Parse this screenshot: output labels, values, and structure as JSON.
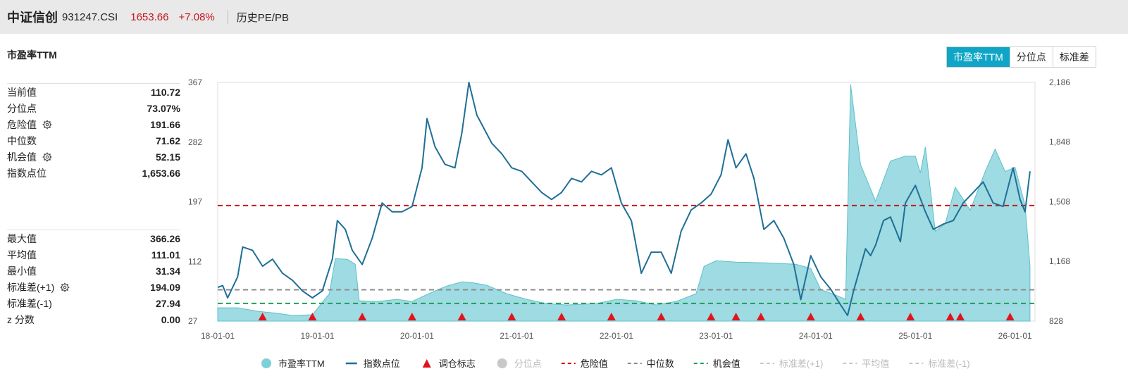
{
  "header": {
    "name": "中证信创",
    "code": "931247.CSI",
    "price": "1653.66",
    "change": "+7.08%",
    "tab": "历史PE/PB"
  },
  "panel_title": "市盈率TTM",
  "toggle": [
    "市盈率TTM",
    "分位点",
    "标准差"
  ],
  "stats_top": [
    {
      "label": "当前值",
      "value": "110.72",
      "gear": false
    },
    {
      "label": "分位点",
      "value": "73.07%",
      "gear": false
    },
    {
      "label": "危险值",
      "value": "191.66",
      "gear": true
    },
    {
      "label": "中位数",
      "value": "71.62",
      "gear": false
    },
    {
      "label": "机会值",
      "value": "52.15",
      "gear": true
    },
    {
      "label": "指数点位",
      "value": "1,653.66",
      "gear": false
    }
  ],
  "stats_bottom": [
    {
      "label": "最大值",
      "value": "366.26",
      "gear": false
    },
    {
      "label": "平均值",
      "value": "111.01",
      "gear": false
    },
    {
      "label": "最小值",
      "value": "31.34",
      "gear": false
    },
    {
      "label": "标准差(+1)",
      "value": "194.09",
      "gear": true
    },
    {
      "label": "标准差(-1)",
      "value": "27.94",
      "gear": false
    },
    {
      "label": "z 分数",
      "value": "0.00",
      "gear": false
    }
  ],
  "chart_data": {
    "type": "area",
    "x_ticks": [
      "18-01-01",
      "19-01-01",
      "20-01-01",
      "21-01-01",
      "22-01-01",
      "23-01-01",
      "24-01-01",
      "25-01-01",
      "26-01-01"
    ],
    "x_range": [
      2018.0,
      2026.2
    ],
    "y_left": {
      "range": [
        27,
        367
      ],
      "ticks": [
        367,
        282,
        197,
        112,
        27
      ],
      "tick_labels": [
        "367",
        "282",
        "197",
        "112",
        "27"
      ]
    },
    "y_right": {
      "range": [
        828,
        2186
      ],
      "ticks": [
        2186,
        1848,
        1508,
        1168,
        828
      ],
      "tick_labels": [
        "2,186",
        "1,848",
        "1,508",
        "1,168",
        "828"
      ]
    },
    "series": [
      {
        "name": "市盈率TTM",
        "axis": "left",
        "color": "#7ecfd8",
        "points": [
          [
            2018.0,
            46
          ],
          [
            2018.2,
            46
          ],
          [
            2018.4,
            41
          ],
          [
            2018.6,
            38
          ],
          [
            2018.75,
            35
          ],
          [
            2018.95,
            36
          ],
          [
            2019.12,
            66
          ],
          [
            2019.18,
            116
          ],
          [
            2019.3,
            115
          ],
          [
            2019.38,
            108
          ],
          [
            2019.42,
            56
          ],
          [
            2019.6,
            55
          ],
          [
            2019.8,
            58
          ],
          [
            2019.95,
            55
          ],
          [
            2020.15,
            68
          ],
          [
            2020.3,
            77
          ],
          [
            2020.45,
            83
          ],
          [
            2020.55,
            82
          ],
          [
            2020.7,
            78
          ],
          [
            2020.9,
            66
          ],
          [
            2021.1,
            58
          ],
          [
            2021.3,
            52
          ],
          [
            2021.5,
            50
          ],
          [
            2021.8,
            52
          ],
          [
            2022.0,
            58
          ],
          [
            2022.2,
            56
          ],
          [
            2022.4,
            50
          ],
          [
            2022.6,
            55
          ],
          [
            2022.8,
            66
          ],
          [
            2022.88,
            105
          ],
          [
            2023.0,
            113
          ],
          [
            2023.2,
            111
          ],
          [
            2023.5,
            110
          ],
          [
            2023.8,
            108
          ],
          [
            2023.95,
            102
          ],
          [
            2024.05,
            72
          ],
          [
            2024.2,
            64
          ],
          [
            2024.3,
            58
          ],
          [
            2024.35,
            364
          ],
          [
            2024.45,
            250
          ],
          [
            2024.6,
            198
          ],
          [
            2024.75,
            255
          ],
          [
            2024.9,
            262
          ],
          [
            2025.0,
            262
          ],
          [
            2025.05,
            238
          ],
          [
            2025.1,
            275
          ],
          [
            2025.2,
            155
          ],
          [
            2025.3,
            166
          ],
          [
            2025.4,
            218
          ],
          [
            2025.55,
            185
          ],
          [
            2025.7,
            240
          ],
          [
            2025.8,
            272
          ],
          [
            2025.9,
            240
          ],
          [
            2026.0,
            246
          ],
          [
            2026.1,
            192
          ],
          [
            2026.15,
            105
          ]
        ]
      },
      {
        "name": "指数点位",
        "axis": "right",
        "color": "#1f6f96",
        "points": [
          [
            2018.0,
            1020
          ],
          [
            2018.05,
            1030
          ],
          [
            2018.1,
            960
          ],
          [
            2018.2,
            1080
          ],
          [
            2018.25,
            1250
          ],
          [
            2018.35,
            1230
          ],
          [
            2018.45,
            1140
          ],
          [
            2018.55,
            1180
          ],
          [
            2018.65,
            1100
          ],
          [
            2018.75,
            1060
          ],
          [
            2018.85,
            1000
          ],
          [
            2018.95,
            960
          ],
          [
            2019.05,
            1000
          ],
          [
            2019.15,
            1180
          ],
          [
            2019.2,
            1400
          ],
          [
            2019.28,
            1350
          ],
          [
            2019.35,
            1230
          ],
          [
            2019.45,
            1150
          ],
          [
            2019.55,
            1300
          ],
          [
            2019.65,
            1500
          ],
          [
            2019.75,
            1450
          ],
          [
            2019.85,
            1450
          ],
          [
            2019.95,
            1480
          ],
          [
            2020.05,
            1700
          ],
          [
            2020.1,
            1980
          ],
          [
            2020.18,
            1820
          ],
          [
            2020.28,
            1720
          ],
          [
            2020.38,
            1700
          ],
          [
            2020.45,
            1900
          ],
          [
            2020.52,
            2186
          ],
          [
            2020.6,
            2000
          ],
          [
            2020.75,
            1840
          ],
          [
            2020.85,
            1780
          ],
          [
            2020.95,
            1700
          ],
          [
            2021.05,
            1680
          ],
          [
            2021.15,
            1620
          ],
          [
            2021.25,
            1560
          ],
          [
            2021.35,
            1520
          ],
          [
            2021.45,
            1560
          ],
          [
            2021.55,
            1640
          ],
          [
            2021.65,
            1620
          ],
          [
            2021.75,
            1680
          ],
          [
            2021.85,
            1660
          ],
          [
            2021.95,
            1700
          ],
          [
            2022.05,
            1500
          ],
          [
            2022.15,
            1400
          ],
          [
            2022.25,
            1100
          ],
          [
            2022.35,
            1220
          ],
          [
            2022.45,
            1220
          ],
          [
            2022.55,
            1100
          ],
          [
            2022.65,
            1340
          ],
          [
            2022.75,
            1460
          ],
          [
            2022.85,
            1500
          ],
          [
            2022.95,
            1550
          ],
          [
            2023.05,
            1660
          ],
          [
            2023.12,
            1860
          ],
          [
            2023.2,
            1700
          ],
          [
            2023.3,
            1780
          ],
          [
            2023.38,
            1640
          ],
          [
            2023.48,
            1350
          ],
          [
            2023.58,
            1400
          ],
          [
            2023.68,
            1300
          ],
          [
            2023.78,
            1150
          ],
          [
            2023.85,
            950
          ],
          [
            2023.95,
            1200
          ],
          [
            2024.05,
            1080
          ],
          [
            2024.15,
            1010
          ],
          [
            2024.25,
            920
          ],
          [
            2024.32,
            860
          ],
          [
            2024.38,
            1000
          ],
          [
            2024.42,
            1080
          ],
          [
            2024.5,
            1240
          ],
          [
            2024.55,
            1200
          ],
          [
            2024.6,
            1260
          ],
          [
            2024.68,
            1400
          ],
          [
            2024.75,
            1420
          ],
          [
            2024.85,
            1280
          ],
          [
            2024.9,
            1500
          ],
          [
            2025.0,
            1600
          ],
          [
            2025.1,
            1450
          ],
          [
            2025.18,
            1350
          ],
          [
            2025.28,
            1380
          ],
          [
            2025.38,
            1400
          ],
          [
            2025.48,
            1500
          ],
          [
            2025.58,
            1560
          ],
          [
            2025.68,
            1620
          ],
          [
            2025.78,
            1500
          ],
          [
            2025.88,
            1480
          ],
          [
            2025.98,
            1700
          ],
          [
            2026.05,
            1520
          ],
          [
            2026.1,
            1450
          ],
          [
            2026.15,
            1680
          ]
        ]
      }
    ],
    "markers": {
      "name": "调仓标志",
      "color": "#e1141e",
      "x": [
        2018.45,
        2018.95,
        2019.45,
        2019.95,
        2020.45,
        2020.95,
        2021.45,
        2021.95,
        2022.45,
        2022.95,
        2023.2,
        2023.45,
        2023.95,
        2024.45,
        2024.95,
        2025.35,
        2025.45,
        2025.95
      ]
    },
    "reference_lines": [
      {
        "name": "危险值",
        "axis": "left",
        "value": 191.66,
        "color": "#c8161d"
      },
      {
        "name": "中位数",
        "axis": "left",
        "value": 71.62,
        "color": "#8c8c8c"
      },
      {
        "name": "机会值",
        "axis": "left",
        "value": 52.15,
        "color": "#1e9e58"
      }
    ],
    "legend": [
      {
        "name": "市盈率TTM",
        "kind": "circle",
        "color": "#7ecfd8",
        "enabled": true
      },
      {
        "name": "指数点位",
        "kind": "line",
        "color": "#1f6f96",
        "enabled": true
      },
      {
        "name": "调仓标志",
        "kind": "triangle",
        "color": "#e1141e",
        "enabled": true
      },
      {
        "name": "分位点",
        "kind": "circle",
        "color": "#c8c8c8",
        "enabled": false
      },
      {
        "name": "危险值",
        "kind": "dash",
        "color": "#c8161d",
        "enabled": true
      },
      {
        "name": "中位数",
        "kind": "dash",
        "color": "#8c8c8c",
        "enabled": true
      },
      {
        "name": "机会值",
        "kind": "dash",
        "color": "#1e9e58",
        "enabled": true
      },
      {
        "name": "标准差(+1)",
        "kind": "dash",
        "color": "#c8c8c8",
        "enabled": false
      },
      {
        "name": "平均值",
        "kind": "dash",
        "color": "#c8c8c8",
        "enabled": false
      },
      {
        "name": "标准差(-1)",
        "kind": "dash",
        "color": "#c8c8c8",
        "enabled": false
      }
    ],
    "legend_position": "bottom"
  },
  "colors": {
    "accent": "#0ea5c6",
    "up": "#c8161d"
  },
  "icons": {
    "gear": "gear-icon"
  }
}
